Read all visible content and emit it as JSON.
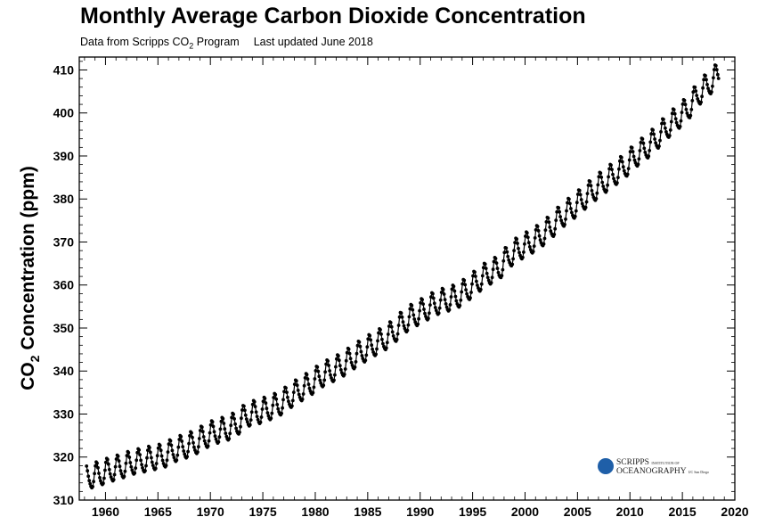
{
  "header": {
    "title": "Monthly Average Carbon Dioxide Concentration",
    "subtitle_source_pre": "Data from Scripps CO",
    "subtitle_source_sub": "2",
    "subtitle_source_post": " Program",
    "subtitle_updated": "Last updated June 2018"
  },
  "logo": {
    "line1_big": "SCRIPPS",
    "line1_small": "INSTITUTION OF",
    "line2_big": "OCEANOGRAPHY",
    "line2_small": "UC San Diego",
    "globe_color": "#1f5fa8"
  },
  "chart_data": {
    "type": "scatter",
    "title": "Monthly Average Carbon Dioxide Concentration",
    "subtitle": "Data from Scripps CO2 Program    Last updated June 2018",
    "ylabel": "CO2 Concentration (ppm)",
    "xlabel": "",
    "xlim": [
      1957.5,
      2020
    ],
    "ylim": [
      310,
      413
    ],
    "xticks": [
      1960,
      1965,
      1970,
      1975,
      1980,
      1985,
      1990,
      1995,
      2000,
      2005,
      2010,
      2015,
      2020
    ],
    "yticks": [
      310,
      320,
      330,
      340,
      350,
      360,
      370,
      380,
      390,
      400,
      410
    ],
    "marker": "filled circle connected by line",
    "grid": false,
    "series_color": "#000000",
    "annual_mean_ppm": [
      [
        1958,
        315.3
      ],
      [
        1959,
        316.0
      ],
      [
        1960,
        316.9
      ],
      [
        1961,
        317.6
      ],
      [
        1962,
        318.5
      ],
      [
        1963,
        319.0
      ],
      [
        1964,
        319.6
      ],
      [
        1965,
        320.0
      ],
      [
        1966,
        321.4
      ],
      [
        1967,
        322.2
      ],
      [
        1968,
        323.1
      ],
      [
        1969,
        324.6
      ],
      [
        1970,
        325.7
      ],
      [
        1971,
        326.3
      ],
      [
        1972,
        327.5
      ],
      [
        1973,
        329.7
      ],
      [
        1974,
        330.2
      ],
      [
        1975,
        331.1
      ],
      [
        1976,
        332.0
      ],
      [
        1977,
        333.8
      ],
      [
        1978,
        335.4
      ],
      [
        1979,
        336.8
      ],
      [
        1980,
        338.7
      ],
      [
        1981,
        339.9
      ],
      [
        1982,
        341.1
      ],
      [
        1983,
        342.8
      ],
      [
        1984,
        344.4
      ],
      [
        1985,
        345.9
      ],
      [
        1986,
        347.2
      ],
      [
        1987,
        349.0
      ],
      [
        1988,
        351.4
      ],
      [
        1989,
        352.9
      ],
      [
        1990,
        354.2
      ],
      [
        1991,
        355.6
      ],
      [
        1992,
        356.4
      ],
      [
        1993,
        357.1
      ],
      [
        1994,
        358.8
      ],
      [
        1995,
        360.8
      ],
      [
        1996,
        362.6
      ],
      [
        1997,
        363.7
      ],
      [
        1998,
        366.7
      ],
      [
        1999,
        368.4
      ],
      [
        2000,
        369.7
      ],
      [
        2001,
        371.3
      ],
      [
        2002,
        373.4
      ],
      [
        2003,
        375.9
      ],
      [
        2004,
        377.7
      ],
      [
        2005,
        379.8
      ],
      [
        2006,
        381.9
      ],
      [
        2007,
        383.8
      ],
      [
        2008,
        385.6
      ],
      [
        2009,
        387.4
      ],
      [
        2010,
        389.9
      ],
      [
        2011,
        391.7
      ],
      [
        2012,
        393.9
      ],
      [
        2013,
        396.5
      ],
      [
        2014,
        398.6
      ],
      [
        2015,
        400.8
      ],
      [
        2016,
        404.2
      ],
      [
        2017,
        406.6
      ],
      [
        2018,
        408.9
      ]
    ],
    "seasonal_amplitude_ppm": 6.5,
    "data_start": "1958.2",
    "data_end": "2018.5"
  }
}
